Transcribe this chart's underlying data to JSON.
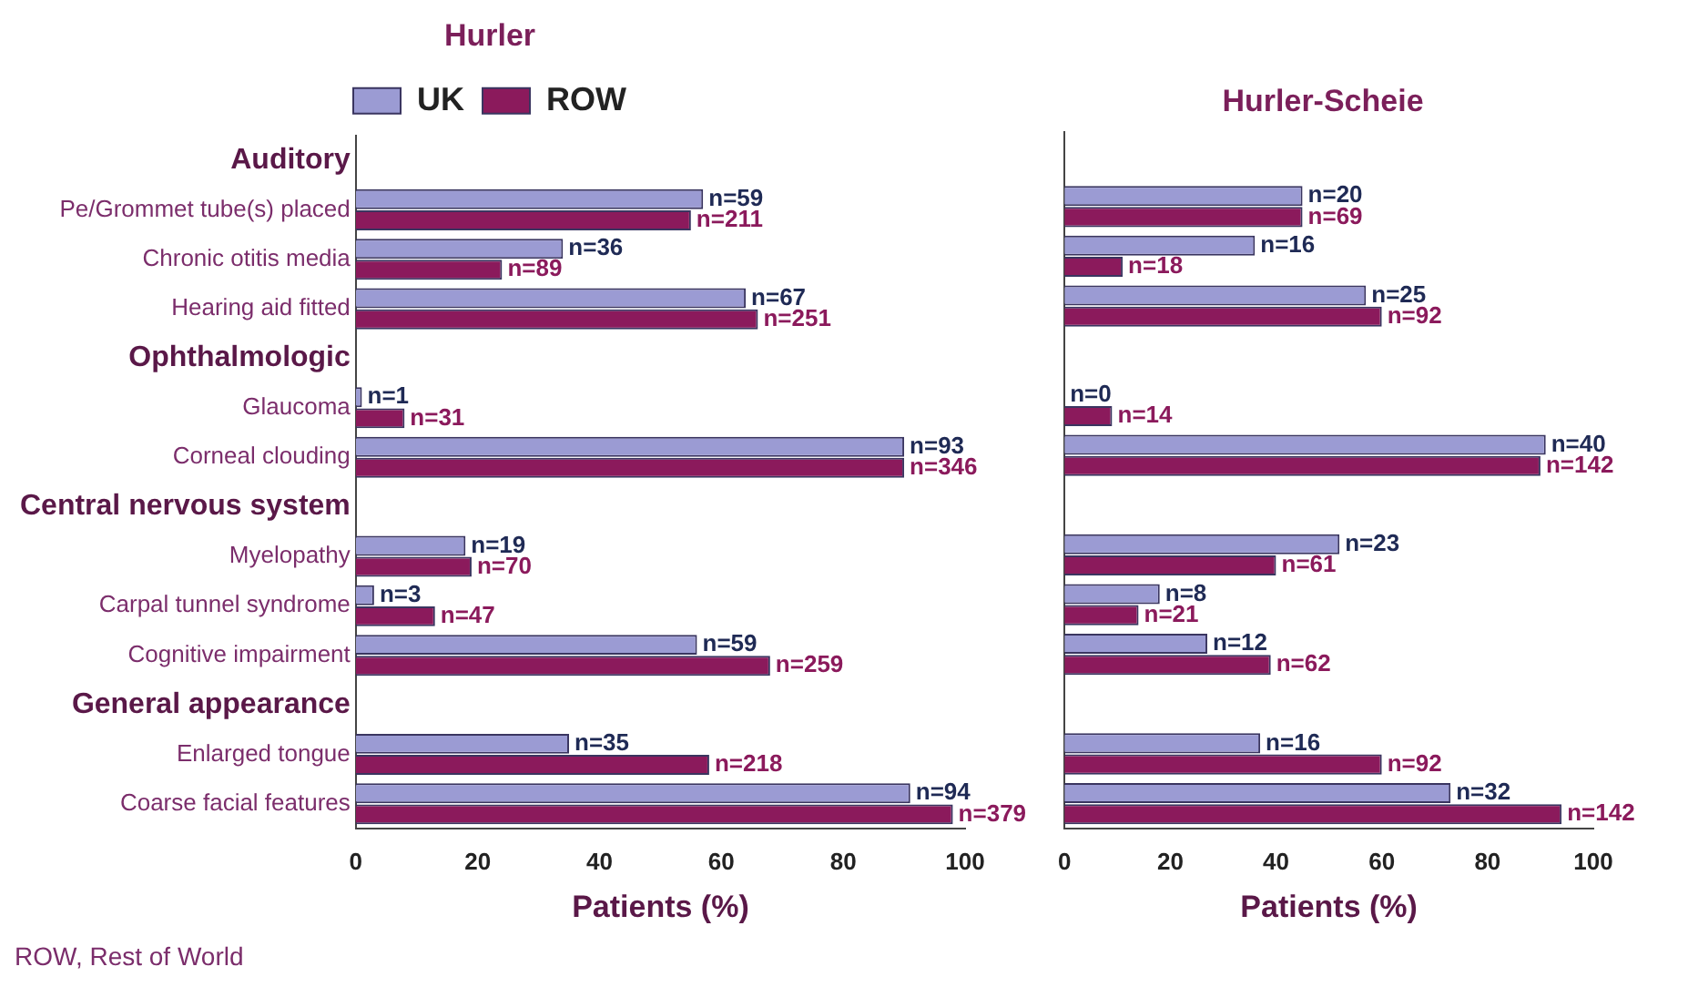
{
  "chart_data": [
    {
      "type": "bar",
      "orientation": "horizontal",
      "title": "Hurler",
      "xlabel": "Patients (%)",
      "legend": "top",
      "grid": false,
      "xlim": [
        0,
        100
      ],
      "xticks": [
        0,
        20,
        40,
        60,
        80,
        100
      ],
      "categories": [
        "Auditory",
        "Pe/Grommet tube(s) placed",
        "Chronic otitis media",
        "Hearing aid fitted",
        "Ophthalmologic",
        "Glaucoma",
        "Corneal clouding",
        "Central nervous system",
        "Myelopathy",
        "Carpal tunnel syndrome",
        "Cognitive impairment",
        "General appearance",
        "Enlarged tongue",
        "Coarse facial features"
      ],
      "series": [
        {
          "name": "UK",
          "color": "#9b9bd3",
          "values": [
            null,
            57,
            34,
            64,
            null,
            1,
            90,
            null,
            18,
            3,
            56,
            null,
            35,
            91
          ]
        },
        {
          "name": "ROW",
          "color": "#8b1a5c",
          "values": [
            null,
            55,
            24,
            66,
            null,
            8,
            90,
            null,
            19,
            13,
            68,
            null,
            58,
            98
          ]
        }
      ],
      "annotations": [
        "ROW, Rest of World",
        {
          "text": "n=59",
          "x": 57
        },
        {
          "text": "n=211",
          "x": 55
        },
        {
          "text": "n=36",
          "x": 34
        },
        {
          "text": "n=89",
          "x": 24
        },
        {
          "text": "n=67",
          "x": 64
        },
        {
          "text": "n=251",
          "x": 66
        },
        {
          "text": "n=1",
          "x": 1
        },
        {
          "text": "n=31",
          "x": 8
        },
        {
          "text": "n=93",
          "x": 90
        },
        {
          "text": "n=346",
          "x": 90
        },
        {
          "text": "n=19",
          "x": 18
        },
        {
          "text": "n=70",
          "x": 19
        },
        {
          "text": "n=3",
          "x": 3
        },
        {
          "text": "n=47",
          "x": 13
        },
        {
          "text": "n=59",
          "x": 56
        },
        {
          "text": "n=259",
          "x": 68
        },
        {
          "text": "n=35",
          "x": 35
        },
        {
          "text": "n=218",
          "x": 58
        },
        {
          "text": "n=94",
          "x": 91
        },
        {
          "text": "n=379",
          "x": 98
        }
      ]
    },
    {
      "type": "bar",
      "orientation": "horizontal",
      "title": "Hurler-Scheie",
      "xlabel": "Patients (%)",
      "grid": false,
      "tick_labels": "x",
      "xlim": [
        0,
        100
      ],
      "xticks": [
        0,
        20,
        40,
        60,
        80,
        100
      ],
      "categories": [
        null,
        null,
        null,
        null,
        null,
        null,
        null,
        null,
        null,
        null,
        null,
        null,
        null,
        null
      ],
      "series": [
        {
          "color": "#9b9bd3",
          "values": [
            null,
            45,
            36,
            57,
            null,
            0,
            91,
            null,
            52,
            18,
            27,
            null,
            37,
            73
          ]
        },
        {
          "color": "#8b1a5c",
          "values": [
            null,
            45,
            11,
            60,
            null,
            9,
            90,
            null,
            40,
            14,
            39,
            null,
            60,
            94
          ]
        }
      ],
      "annotations": [
        {
          "text": "n=20",
          "x": 45
        },
        {
          "text": "n=69",
          "x": 45
        },
        {
          "text": "n=16",
          "x": 36
        },
        {
          "text": "n=18",
          "x": 11
        },
        {
          "text": "n=25",
          "x": 57
        },
        {
          "text": "n=92",
          "x": 60
        },
        "n=0",
        {
          "text": "n=14",
          "x": 9
        },
        {
          "text": "n=40",
          "x": 91
        },
        {
          "text": "n=142",
          "x": 90
        },
        {
          "text": "n=23",
          "x": 52
        },
        {
          "text": "n=61",
          "x": 40
        },
        {
          "text": "n=8",
          "x": 18
        },
        {
          "text": "n=21",
          "x": 14
        },
        {
          "text": "n=12",
          "x": 27
        },
        {
          "text": "n=62",
          "x": 39
        },
        {
          "text": "n=16",
          "x": 37
        },
        {
          "text": "n=92",
          "x": 60
        },
        {
          "text": "n=32",
          "x": 73
        },
        {
          "text": "n=142",
          "x": 94
        }
      ]
    }
  ]
}
